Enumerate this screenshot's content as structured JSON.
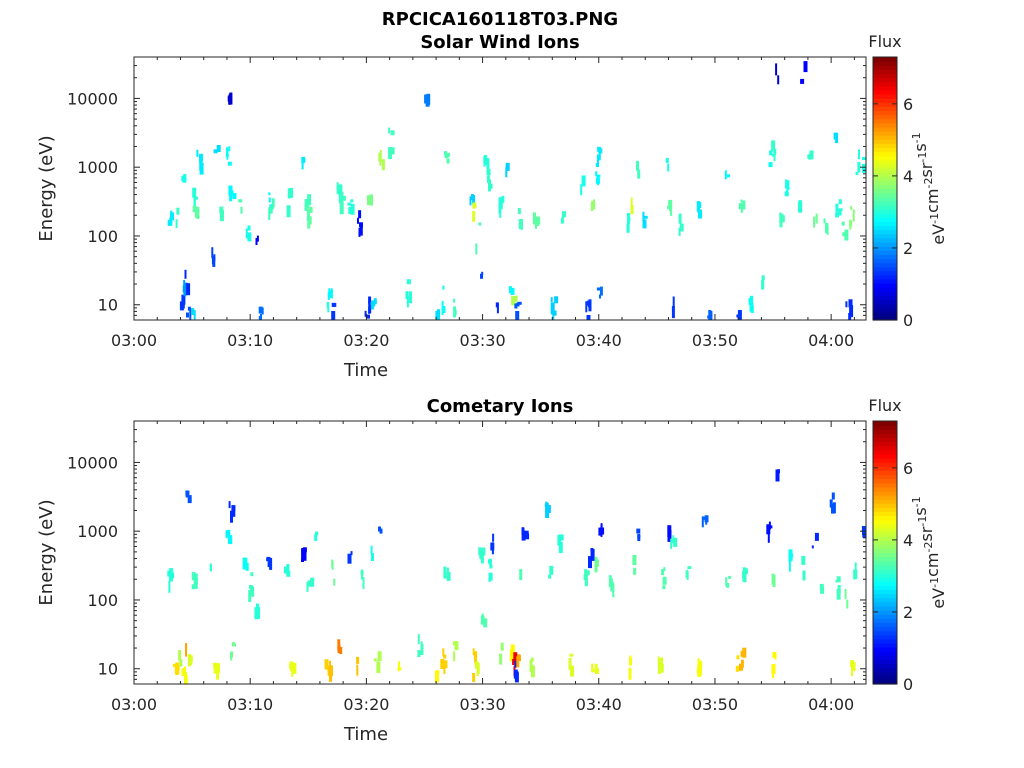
{
  "figure_title": "RPCICA160118T03.PNG",
  "chart_data": [
    {
      "type": "heatmap",
      "title": "Solar Wind Ions",
      "xlabel": "Time",
      "ylabel": "Energy (eV)",
      "xlim_minutes": [
        0,
        63
      ],
      "ylim": [
        6,
        40000
      ],
      "yscale": "log",
      "x_tick_labels": [
        "03:00",
        "03:10",
        "03:20",
        "03:30",
        "03:40",
        "03:50",
        "04:00"
      ],
      "x_tick_minutes": [
        0,
        10,
        20,
        30,
        40,
        50,
        60
      ],
      "y_tick_labels": [
        "10",
        "100",
        "1000",
        "10000"
      ],
      "y_ticks": [
        10,
        100,
        1000,
        10000
      ],
      "colorbar": {
        "title": "Flux",
        "label": "eV-1cm-2sr-1s-1",
        "min": 0,
        "max": 7.3,
        "tick_labels": [
          "0",
          "2",
          "4",
          "6"
        ],
        "colormap": "jet"
      },
      "points": [
        [
          4.1,
          12,
          1.3
        ],
        [
          4.3,
          20,
          2.0
        ],
        [
          4.5,
          28,
          1.2
        ],
        [
          4.6,
          8,
          1.5
        ],
        [
          5.0,
          7,
          2.5
        ],
        [
          5.1,
          400,
          3.0
        ],
        [
          5.2,
          250,
          3.4
        ],
        [
          3.0,
          200,
          2.6
        ],
        [
          3.5,
          220,
          3.1
        ],
        [
          4.2,
          850,
          2.9
        ],
        [
          5.5,
          1500,
          2.6
        ],
        [
          7.0,
          1700,
          2.5
        ],
        [
          7.4,
          300,
          3.2
        ],
        [
          6.8,
          60,
          1.4
        ],
        [
          8.0,
          1500,
          2.8
        ],
        [
          8.2,
          12000,
          0.6
        ],
        [
          8.3,
          500,
          2.7
        ],
        [
          9.0,
          300,
          3.3
        ],
        [
          9.6,
          120,
          2.9
        ],
        [
          10.5,
          100,
          0.9
        ],
        [
          10.9,
          7,
          1.7
        ],
        [
          11.5,
          350,
          2.7
        ],
        [
          11.7,
          250,
          3.2
        ],
        [
          13.2,
          400,
          3.1
        ],
        [
          14.5,
          1200,
          2.6
        ],
        [
          14.8,
          300,
          3.2
        ],
        [
          15.0,
          200,
          3.4
        ],
        [
          16.5,
          11,
          3.0
        ],
        [
          16.8,
          15,
          2.7
        ],
        [
          16.9,
          8,
          1.3
        ],
        [
          17.5,
          500,
          3.1
        ],
        [
          17.8,
          280,
          3.2
        ],
        [
          18.5,
          300,
          3.0
        ],
        [
          19.3,
          180,
          1.0
        ],
        [
          20.0,
          10,
          1.2
        ],
        [
          20.2,
          300,
          3.6
        ],
        [
          20.5,
          12,
          2.5
        ],
        [
          21.2,
          1500,
          4.0
        ],
        [
          22.0,
          2800,
          3.2
        ],
        [
          23.5,
          18,
          3.0
        ],
        [
          25.0,
          9000,
          1.8
        ],
        [
          26.1,
          8,
          2.5
        ],
        [
          26.5,
          13,
          2.8
        ],
        [
          26.8,
          1600,
          3.3
        ],
        [
          27.5,
          11,
          3.2
        ],
        [
          29.0,
          450,
          2.4
        ],
        [
          29.2,
          250,
          4.3
        ],
        [
          29.5,
          120,
          3.3
        ],
        [
          29.8,
          30,
          1.4
        ],
        [
          30.2,
          1200,
          3.0
        ],
        [
          30.5,
          800,
          3.1
        ],
        [
          31.1,
          9,
          1.2
        ],
        [
          31.5,
          300,
          3.0
        ],
        [
          32.0,
          1100,
          2.4
        ],
        [
          32.4,
          18,
          2.7
        ],
        [
          32.6,
          12,
          4.0
        ],
        [
          32.9,
          9,
          1.5
        ],
        [
          33.2,
          200,
          3.2
        ],
        [
          34.5,
          180,
          3.4
        ],
        [
          36.0,
          10,
          2.4
        ],
        [
          36.9,
          200,
          3.1
        ],
        [
          38.5,
          600,
          2.9
        ],
        [
          39.0,
          9,
          1.3
        ],
        [
          39.4,
          300,
          3.8
        ],
        [
          39.8,
          800,
          2.7
        ],
        [
          39.9,
          1500,
          2.6
        ],
        [
          40.0,
          14,
          1.7
        ],
        [
          42.5,
          200,
          3.0
        ],
        [
          42.7,
          300,
          4.3
        ],
        [
          43.3,
          1000,
          3.2
        ],
        [
          43.8,
          200,
          2.5
        ],
        [
          45.8,
          1200,
          2.9
        ],
        [
          46.0,
          300,
          3.4
        ],
        [
          46.3,
          9,
          1.3
        ],
        [
          47.0,
          180,
          3.1
        ],
        [
          48.5,
          250,
          2.6
        ],
        [
          49.5,
          8,
          1.6
        ],
        [
          51.0,
          800,
          2.7
        ],
        [
          52.0,
          8,
          1.3
        ],
        [
          52.2,
          300,
          3.3
        ],
        [
          53.0,
          12,
          2.8
        ],
        [
          54.0,
          20,
          3.1
        ],
        [
          54.6,
          1300,
          2.8
        ],
        [
          55.0,
          2000,
          3.1
        ],
        [
          55.3,
          25000,
          0.6
        ],
        [
          55.5,
          200,
          3.2
        ],
        [
          56.0,
          500,
          2.9
        ],
        [
          57.2,
          350,
          3.0
        ],
        [
          57.5,
          25000,
          0.9
        ],
        [
          58.0,
          2000,
          3.1
        ],
        [
          58.5,
          200,
          3.5
        ],
        [
          59.5,
          150,
          3.3
        ],
        [
          60.2,
          3000,
          2.5
        ],
        [
          60.5,
          250,
          3.0
        ],
        [
          61.0,
          120,
          3.3
        ],
        [
          61.4,
          9,
          1.2
        ],
        [
          61.7,
          220,
          3.7
        ],
        [
          62.2,
          1200,
          3.0
        ],
        [
          62.8,
          1300,
          2.9
        ]
      ]
    },
    {
      "type": "heatmap",
      "title": "Cometary Ions",
      "xlabel": "Time",
      "ylabel": "Energy (eV)",
      "xlim_minutes": [
        0,
        63
      ],
      "ylim": [
        6,
        40000
      ],
      "yscale": "log",
      "x_tick_labels": [
        "03:00",
        "03:10",
        "03:20",
        "03:30",
        "03:40",
        "03:50",
        "04:00"
      ],
      "x_tick_minutes": [
        0,
        10,
        20,
        30,
        40,
        50,
        60
      ],
      "y_tick_labels": [
        "10",
        "100",
        "1000",
        "10000"
      ],
      "y_ticks": [
        10,
        100,
        1000,
        10000
      ],
      "colorbar": {
        "title": "Flux",
        "label": "eV-1cm-2sr-1s-1",
        "min": 0,
        "max": 7.3,
        "tick_labels": [
          "0",
          "2",
          "4",
          "6"
        ],
        "colormap": "jet"
      },
      "points": [
        [
          3.5,
          12,
          4.8
        ],
        [
          3.8,
          18,
          4.0
        ],
        [
          4.2,
          9,
          4.5
        ],
        [
          4.5,
          25,
          5.2
        ],
        [
          4.6,
          14,
          4.3
        ],
        [
          3.0,
          250,
          3.0
        ],
        [
          4.5,
          3200,
          1.5
        ],
        [
          5.0,
          200,
          3.2
        ],
        [
          6.5,
          280,
          3.0
        ],
        [
          6.9,
          12,
          4.4
        ],
        [
          8.0,
          900,
          2.7
        ],
        [
          8.3,
          2000,
          1.2
        ],
        [
          8.4,
          18,
          3.5
        ],
        [
          9.5,
          400,
          2.8
        ],
        [
          10.0,
          200,
          3.2
        ],
        [
          10.5,
          80,
          3.0
        ],
        [
          11.5,
          400,
          1.3
        ],
        [
          13.0,
          300,
          3.0
        ],
        [
          13.5,
          12,
          4.4
        ],
        [
          14.5,
          500,
          0.9
        ],
        [
          15.0,
          200,
          3.1
        ],
        [
          15.5,
          1000,
          3.0
        ],
        [
          16.5,
          15,
          4.9
        ],
        [
          16.8,
          12,
          5.0
        ],
        [
          17.0,
          300,
          3.5
        ],
        [
          17.5,
          20,
          5.5
        ],
        [
          18.5,
          500,
          1.3
        ],
        [
          19.2,
          14,
          5.0
        ],
        [
          19.5,
          250,
          3.2
        ],
        [
          20.5,
          500,
          2.9
        ],
        [
          20.8,
          15,
          4.0
        ],
        [
          21.0,
          1000,
          1.5
        ],
        [
          22.8,
          12,
          4.5
        ],
        [
          24.5,
          25,
          3.2
        ],
        [
          26.0,
          9,
          4.6
        ],
        [
          26.5,
          15,
          4.9
        ],
        [
          26.8,
          300,
          3.1
        ],
        [
          27.5,
          20,
          4.0
        ],
        [
          29.2,
          13,
          4.9
        ],
        [
          29.5,
          11,
          4.3
        ],
        [
          29.8,
          500,
          3.1
        ],
        [
          30.0,
          50,
          3.3
        ],
        [
          30.5,
          300,
          3.0
        ],
        [
          30.8,
          800,
          1.3
        ],
        [
          31.5,
          20,
          3.8
        ],
        [
          32.3,
          20,
          4.6
        ],
        [
          32.6,
          13,
          6.5
        ],
        [
          32.8,
          10,
          1.2
        ],
        [
          32.9,
          16,
          5.2
        ],
        [
          33.3,
          300,
          3.3
        ],
        [
          33.5,
          1000,
          1.2
        ],
        [
          34.0,
          12,
          4.0
        ],
        [
          35.5,
          2500,
          2.4
        ],
        [
          35.8,
          250,
          3.1
        ],
        [
          36.5,
          800,
          3.0
        ],
        [
          37.5,
          14,
          4.3
        ],
        [
          38.8,
          250,
          3.2
        ],
        [
          39.2,
          500,
          1.2
        ],
        [
          39.5,
          11,
          4.4
        ],
        [
          39.8,
          300,
          3.5
        ],
        [
          40.0,
          1200,
          1.0
        ],
        [
          41.0,
          200,
          3.3
        ],
        [
          42.5,
          12,
          4.5
        ],
        [
          42.8,
          400,
          3.4
        ],
        [
          43.3,
          1000,
          1.4
        ],
        [
          45.2,
          15,
          4.3
        ],
        [
          45.5,
          250,
          3.3
        ],
        [
          45.9,
          1200,
          1.0
        ],
        [
          46.3,
          900,
          3.1
        ],
        [
          47.5,
          300,
          3.2
        ],
        [
          48.5,
          12,
          4.5
        ],
        [
          49.0,
          1500,
          1.6
        ],
        [
          51.0,
          200,
          3.3
        ],
        [
          51.8,
          12,
          4.8
        ],
        [
          52.2,
          15,
          5.1
        ],
        [
          52.5,
          300,
          3.1
        ],
        [
          54.5,
          1200,
          1.0
        ],
        [
          54.8,
          250,
          3.5
        ],
        [
          55.0,
          14,
          4.6
        ],
        [
          55.3,
          8500,
          1.1
        ],
        [
          56.5,
          500,
          2.8
        ],
        [
          57.5,
          300,
          3.1
        ],
        [
          58.5,
          700,
          1.2
        ],
        [
          59.0,
          150,
          3.2
        ],
        [
          60.0,
          3000,
          1.5
        ],
        [
          60.5,
          200,
          3.2
        ],
        [
          61.3,
          120,
          3.5
        ],
        [
          61.8,
          13,
          4.4
        ],
        [
          62.0,
          300,
          3.1
        ],
        [
          62.8,
          1100,
          1.3
        ]
      ]
    }
  ]
}
